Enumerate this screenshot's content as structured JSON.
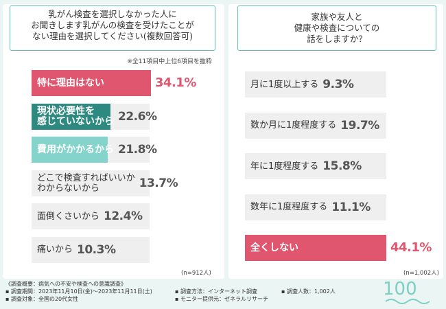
{
  "left": {
    "title_lines": [
      "乳がん検査を選択しなかった人に",
      "お聞きします乳がんの検査を受けたことが",
      "ない理由を選択してください(複数回答可)"
    ],
    "note": "※全11項目中上位6項目を抜粋",
    "n_label": "(n=912人)"
  },
  "right": {
    "title_lines": [
      "家族や友人と",
      "健康や検査についての",
      "話をしますか？"
    ],
    "n_label": "(n=1,002人)"
  },
  "chart_data": [
    {
      "type": "bar",
      "orientation": "horizontal",
      "title": "乳がん検査を選択しなかった人にお聞きします乳がんの検査を受けたことがない理由を選択してください(複数回答可)",
      "categories": [
        "特に理由はない",
        "現状必要性を感じていないから",
        "費用がかかるから",
        "どこで検査すればいいかわからないから",
        "面倒くさいから",
        "痛いから"
      ],
      "category_lines": [
        [
          "特に理由はない"
        ],
        [
          "現状必要性を",
          "感じていないから"
        ],
        [
          "費用がかかるから"
        ],
        [
          "どこで検査すればいいか",
          "わからないから"
        ],
        [
          "面倒くさいから"
        ],
        [
          "痛いから"
        ]
      ],
      "values": [
        34.1,
        22.6,
        21.8,
        13.7,
        12.4,
        10.3
      ],
      "value_labels": [
        "34.1%",
        "22.6%",
        "21.8%",
        "13.7%",
        "12.4%",
        "10.3%"
      ],
      "unit": "%",
      "xlim": [
        0,
        100
      ],
      "colors": [
        "#e0566e",
        "#2e8a80",
        "#84d4cb",
        "#efefef",
        "#efefef",
        "#efefef"
      ]
    },
    {
      "type": "bar",
      "orientation": "horizontal",
      "title": "家族や友人と健康や検査についての話をしますか？",
      "categories": [
        "月に1度以上する",
        "数か月に1度程度する",
        "年に1度程度する",
        "数年に1度程度する",
        "全くしない"
      ],
      "category_lines": [
        [
          "月に1度以上する"
        ],
        [
          "数か月に1度程度する"
        ],
        [
          "年に1度程度する"
        ],
        [
          "数年に1度程度する"
        ],
        [
          "全くしない"
        ]
      ],
      "values": [
        9.3,
        19.7,
        15.8,
        11.1,
        44.1
      ],
      "value_labels": [
        "9.3%",
        "19.7%",
        "15.8%",
        "11.1%",
        "44.1%"
      ],
      "unit": "%",
      "xlim": [
        0,
        100
      ],
      "colors": [
        "#efefef",
        "#efefef",
        "#efefef",
        "#efefef",
        "#e0566e"
      ]
    }
  ],
  "footer": {
    "overview": "《調査概要：病気への不安や検査への意識調査》",
    "period": "▪ 調査期間：2023年11月10日(金)～2023年11月11日(土)",
    "target": "▪ 調査対象：全国の20代女性",
    "method": "▪ 調査方法：インターネット調査",
    "provider": "▪ モニター提供元：ゼネラルリサーチ",
    "count": "▪ 調査人数：1,002人"
  },
  "logo": {
    "text": "100",
    "color": "#7dcfc6"
  }
}
